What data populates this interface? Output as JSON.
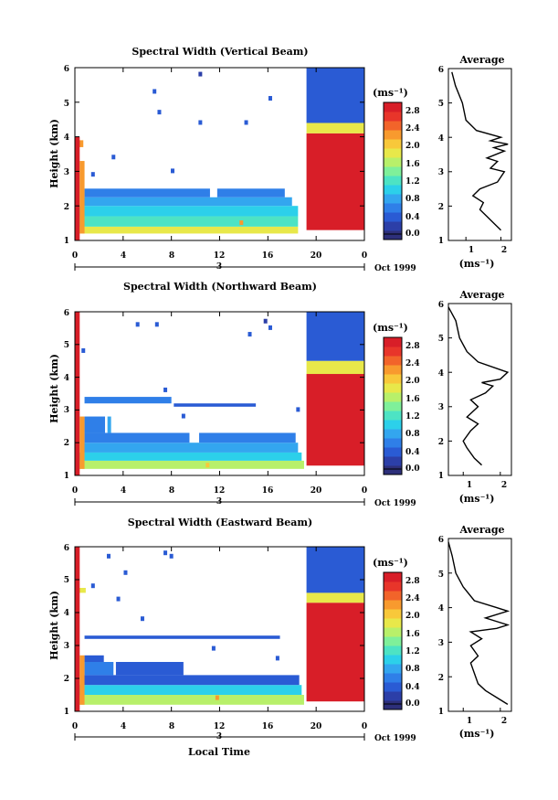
{
  "chart_data": [
    {
      "type": "heatmap",
      "title": "Spectral Width (Vertical Beam)",
      "ylabel": "Height (km)",
      "xlabel": "",
      "x_ticks": [
        "0",
        "4",
        "8",
        "12",
        "16",
        "20",
        "0"
      ],
      "y_ticks": [
        "1",
        "2",
        "3",
        "4",
        "5",
        "6"
      ],
      "xlim": [
        0,
        24
      ],
      "ylim": [
        1,
        6
      ],
      "day_label": "3",
      "date_label": "Oct 1999",
      "colorbar": {
        "unit_label": "(ms⁻¹)",
        "ticks": [
          "0.0",
          "0.4",
          "0.8",
          "1.2",
          "1.6",
          "2.0",
          "2.4",
          "2.8"
        ],
        "range": [
          0,
          3.0
        ]
      },
      "rows": [
        {
          "h0": 1.2,
          "h1": 1.4,
          "segments": [
            {
              "t0": 0.3,
              "t1": 18.5,
              "v": 1.9
            }
          ]
        },
        {
          "h0": 1.4,
          "h1": 1.7,
          "segments": [
            {
              "t0": 0.3,
              "t1": 18.5,
              "v": 1.3
            }
          ]
        },
        {
          "h0": 1.7,
          "h1": 2.0,
          "segments": [
            {
              "t0": 0.3,
              "t1": 18.5,
              "v": 1.0
            }
          ]
        },
        {
          "h0": 2.0,
          "h1": 2.25,
          "segments": [
            {
              "t0": 0.6,
              "t1": 18.0,
              "v": 0.8
            }
          ]
        },
        {
          "h0": 2.25,
          "h1": 2.5,
          "segments": [
            {
              "t0": 0.8,
              "t1": 11.2,
              "v": 0.7
            },
            {
              "t0": 11.8,
              "t1": 17.4,
              "v": 0.7
            }
          ]
        },
        {
          "h0": 3.7,
          "h1": 3.9,
          "segments": [
            {
              "t0": 0.2,
              "t1": 0.7,
              "v": 2.3
            }
          ]
        }
      ],
      "columns": [
        {
          "t0": 0.0,
          "t1": 0.4,
          "h0": 1.0,
          "h1": 4.0,
          "v": 2.9
        },
        {
          "t0": 0.4,
          "t1": 0.8,
          "h0": 1.2,
          "h1": 3.3,
          "v": 2.3
        },
        {
          "t0": 19.2,
          "t1": 24.0,
          "h0": 1.3,
          "h1": 4.1,
          "v": 2.9
        },
        {
          "t0": 19.2,
          "t1": 24.0,
          "h0": 4.1,
          "h1": 4.4,
          "v": 1.8
        },
        {
          "t0": 19.2,
          "t1": 24.0,
          "h0": 4.4,
          "h1": 6.0,
          "v": 0.6
        }
      ],
      "speckles": [
        {
          "t": 10.4,
          "h": 5.8,
          "v": 0.3
        },
        {
          "t": 6.6,
          "h": 5.3,
          "v": 0.6
        },
        {
          "t": 7.0,
          "h": 4.7,
          "v": 0.5
        },
        {
          "t": 10.4,
          "h": 4.4,
          "v": 0.5
        },
        {
          "t": 14.2,
          "h": 4.4,
          "v": 0.6
        },
        {
          "t": 16.2,
          "h": 5.1,
          "v": 0.4
        },
        {
          "t": 3.2,
          "h": 3.4,
          "v": 0.5
        },
        {
          "t": 8.1,
          "h": 3.0,
          "v": 0.6
        },
        {
          "t": 1.5,
          "h": 2.9,
          "v": 0.6
        },
        {
          "t": 13.8,
          "h": 1.5,
          "v": 2.3
        }
      ],
      "average_profile": {
        "title": "Average",
        "xlabel": "(ms⁻¹)",
        "x_ticks": [
          "1",
          "2"
        ],
        "xlim": [
          0.5,
          2.3
        ],
        "y_ticks": [
          "1",
          "2",
          "3",
          "4",
          "5",
          "6"
        ],
        "ylim": [
          1,
          6
        ],
        "points": [
          [
            2.0,
            1.3
          ],
          [
            1.8,
            1.5
          ],
          [
            1.6,
            1.7
          ],
          [
            1.4,
            1.9
          ],
          [
            1.5,
            2.1
          ],
          [
            1.2,
            2.3
          ],
          [
            1.4,
            2.5
          ],
          [
            1.9,
            2.7
          ],
          [
            2.1,
            3.0
          ],
          [
            1.7,
            3.1
          ],
          [
            1.9,
            3.3
          ],
          [
            1.6,
            3.4
          ],
          [
            2.1,
            3.6
          ],
          [
            1.8,
            3.7
          ],
          [
            2.2,
            3.8
          ],
          [
            1.7,
            3.9
          ],
          [
            2.0,
            4.0
          ],
          [
            1.3,
            4.2
          ],
          [
            1.0,
            4.5
          ],
          [
            0.9,
            5.0
          ],
          [
            0.7,
            5.5
          ],
          [
            0.6,
            5.9
          ]
        ]
      }
    },
    {
      "type": "heatmap",
      "title": "Spectral Width (Northward Beam)",
      "ylabel": "Height (km)",
      "xlabel": "",
      "x_ticks": [
        "0",
        "4",
        "8",
        "12",
        "16",
        "20",
        "0"
      ],
      "y_ticks": [
        "1",
        "2",
        "3",
        "4",
        "5",
        "6"
      ],
      "xlim": [
        0,
        24
      ],
      "ylim": [
        1,
        6
      ],
      "day_label": "3",
      "date_label": "Oct 1999",
      "colorbar": {
        "unit_label": "(ms⁻¹)",
        "ticks": [
          "0.0",
          "0.4",
          "0.8",
          "1.2",
          "1.6",
          "2.0",
          "2.4",
          "2.8"
        ],
        "range": [
          0,
          3.0
        ]
      },
      "rows": [
        {
          "h0": 1.2,
          "h1": 1.45,
          "segments": [
            {
              "t0": 0.3,
              "t1": 19.0,
              "v": 1.6
            }
          ]
        },
        {
          "h0": 1.45,
          "h1": 1.7,
          "segments": [
            {
              "t0": 0.3,
              "t1": 18.8,
              "v": 1.0
            }
          ]
        },
        {
          "h0": 1.7,
          "h1": 2.0,
          "segments": [
            {
              "t0": 0.5,
              "t1": 18.5,
              "v": 0.8
            }
          ]
        },
        {
          "h0": 2.0,
          "h1": 2.3,
          "segments": [
            {
              "t0": 0.8,
              "t1": 9.5,
              "v": 0.7
            },
            {
              "t0": 10.3,
              "t1": 18.3,
              "v": 0.7
            }
          ]
        },
        {
          "h0": 2.3,
          "h1": 2.8,
          "segments": [
            {
              "t0": 0.8,
              "t1": 2.5,
              "v": 0.7
            },
            {
              "t0": 2.7,
              "t1": 3.0,
              "v": 0.8
            }
          ]
        },
        {
          "h0": 3.2,
          "h1": 3.4,
          "segments": [
            {
              "t0": 0.8,
              "t1": 8.0,
              "v": 0.7
            }
          ]
        },
        {
          "h0": 3.1,
          "h1": 3.2,
          "segments": [
            {
              "t0": 8.2,
              "t1": 15.0,
              "v": 0.6
            }
          ]
        }
      ],
      "columns": [
        {
          "t0": 0.0,
          "t1": 0.4,
          "h0": 1.0,
          "h1": 6.0,
          "v": 2.9
        },
        {
          "t0": 0.4,
          "t1": 0.8,
          "h0": 1.2,
          "h1": 2.8,
          "v": 2.2
        },
        {
          "t0": 19.2,
          "t1": 24.0,
          "h0": 1.3,
          "h1": 4.1,
          "v": 2.9
        },
        {
          "t0": 19.2,
          "t1": 24.0,
          "h0": 4.1,
          "h1": 4.5,
          "v": 1.8
        },
        {
          "t0": 19.2,
          "t1": 24.0,
          "h0": 4.5,
          "h1": 6.0,
          "v": 0.6
        }
      ],
      "speckles": [
        {
          "t": 5.2,
          "h": 5.6,
          "v": 0.5
        },
        {
          "t": 6.8,
          "h": 5.6,
          "v": 0.5
        },
        {
          "t": 15.8,
          "h": 5.7,
          "v": 0.3
        },
        {
          "t": 16.2,
          "h": 5.5,
          "v": 0.4
        },
        {
          "t": 14.5,
          "h": 5.3,
          "v": 0.5
        },
        {
          "t": 0.7,
          "h": 4.8,
          "v": 0.5
        },
        {
          "t": 7.5,
          "h": 3.6,
          "v": 0.5
        },
        {
          "t": 18.5,
          "h": 3.0,
          "v": 0.6
        },
        {
          "t": 9.0,
          "h": 2.8,
          "v": 0.6
        },
        {
          "t": 11.0,
          "h": 1.3,
          "v": 2.1
        }
      ],
      "average_profile": {
        "title": "Average",
        "xlabel": "(ms⁻¹)",
        "x_ticks": [
          "1",
          "2"
        ],
        "xlim": [
          0.6,
          2.3
        ],
        "y_ticks": [
          "1",
          "2",
          "3",
          "4",
          "5",
          "6"
        ],
        "ylim": [
          1,
          6
        ],
        "points": [
          [
            1.5,
            1.3
          ],
          [
            1.3,
            1.5
          ],
          [
            1.1,
            1.8
          ],
          [
            1.0,
            2.0
          ],
          [
            1.2,
            2.3
          ],
          [
            1.4,
            2.5
          ],
          [
            1.1,
            2.7
          ],
          [
            1.4,
            3.0
          ],
          [
            1.2,
            3.2
          ],
          [
            1.6,
            3.4
          ],
          [
            1.8,
            3.6
          ],
          [
            1.5,
            3.7
          ],
          [
            2.0,
            3.8
          ],
          [
            2.2,
            4.0
          ],
          [
            1.4,
            4.3
          ],
          [
            1.1,
            4.6
          ],
          [
            0.9,
            5.0
          ],
          [
            0.8,
            5.5
          ],
          [
            0.6,
            5.9
          ]
        ]
      }
    },
    {
      "type": "heatmap",
      "title": "Spectral Width (Eastward Beam)",
      "ylabel": "Height (km)",
      "xlabel": "Local Time",
      "x_ticks": [
        "0",
        "4",
        "8",
        "12",
        "16",
        "20",
        "0"
      ],
      "y_ticks": [
        "1",
        "2",
        "3",
        "4",
        "5",
        "6"
      ],
      "xlim": [
        0,
        24
      ],
      "ylim": [
        1,
        6
      ],
      "day_label": "3",
      "date_label": "Oct 1999",
      "colorbar": {
        "unit_label": "(ms⁻¹)",
        "ticks": [
          "0.0",
          "0.4",
          "0.8",
          "1.2",
          "1.6",
          "2.0",
          "2.4",
          "2.8"
        ],
        "range": [
          0,
          3.0
        ]
      },
      "rows": [
        {
          "h0": 1.2,
          "h1": 1.5,
          "segments": [
            {
              "t0": 0.3,
              "t1": 19.0,
              "v": 1.7
            }
          ]
        },
        {
          "h0": 1.5,
          "h1": 1.8,
          "segments": [
            {
              "t0": 0.3,
              "t1": 18.8,
              "v": 1.0
            }
          ]
        },
        {
          "h0": 1.8,
          "h1": 2.1,
          "segments": [
            {
              "t0": 0.5,
              "t1": 18.6,
              "v": 0.6
            }
          ]
        },
        {
          "h0": 2.1,
          "h1": 2.5,
          "segments": [
            {
              "t0": 0.8,
              "t1": 3.2,
              "v": 0.7
            },
            {
              "t0": 3.4,
              "t1": 9.0,
              "v": 0.6
            }
          ]
        },
        {
          "h0": 2.5,
          "h1": 2.7,
          "segments": [
            {
              "t0": 0.8,
              "t1": 2.4,
              "v": 0.6
            }
          ]
        },
        {
          "h0": 3.2,
          "h1": 3.3,
          "segments": [
            {
              "t0": 0.8,
              "t1": 17.0,
              "v": 0.6
            }
          ]
        },
        {
          "h0": 4.6,
          "h1": 4.75,
          "segments": [
            {
              "t0": 0.3,
              "t1": 0.9,
              "v": 1.8
            }
          ]
        }
      ],
      "columns": [
        {
          "t0": 0.0,
          "t1": 0.4,
          "h0": 1.0,
          "h1": 6.0,
          "v": 2.9
        },
        {
          "t0": 0.4,
          "t1": 0.8,
          "h0": 1.2,
          "h1": 2.7,
          "v": 2.2
        },
        {
          "t0": 19.2,
          "t1": 24.0,
          "h0": 1.3,
          "h1": 4.3,
          "v": 2.9
        },
        {
          "t0": 19.2,
          "t1": 24.0,
          "h0": 4.3,
          "h1": 4.6,
          "v": 1.8
        },
        {
          "t0": 19.2,
          "t1": 24.0,
          "h0": 4.6,
          "h1": 6.0,
          "v": 0.6
        }
      ],
      "speckles": [
        {
          "t": 7.5,
          "h": 5.8,
          "v": 0.5
        },
        {
          "t": 8.0,
          "h": 5.7,
          "v": 0.5
        },
        {
          "t": 2.8,
          "h": 5.7,
          "v": 0.4
        },
        {
          "t": 4.2,
          "h": 5.2,
          "v": 0.5
        },
        {
          "t": 1.5,
          "h": 4.8,
          "v": 0.6
        },
        {
          "t": 3.6,
          "h": 4.4,
          "v": 0.6
        },
        {
          "t": 11.5,
          "h": 2.9,
          "v": 0.5
        },
        {
          "t": 16.8,
          "h": 2.6,
          "v": 0.6
        },
        {
          "t": 5.6,
          "h": 3.8,
          "v": 0.5
        },
        {
          "t": 11.8,
          "h": 1.4,
          "v": 2.2
        }
      ],
      "average_profile": {
        "title": "Average",
        "xlabel": "(ms⁻¹)",
        "x_ticks": [
          "1",
          "2"
        ],
        "xlim": [
          0.6,
          2.3
        ],
        "y_ticks": [
          "1",
          "2",
          "3",
          "4",
          "5",
          "6"
        ],
        "ylim": [
          1,
          6
        ],
        "points": [
          [
            2.2,
            1.2
          ],
          [
            1.9,
            1.4
          ],
          [
            1.6,
            1.6
          ],
          [
            1.4,
            1.8
          ],
          [
            1.3,
            2.1
          ],
          [
            1.2,
            2.4
          ],
          [
            1.4,
            2.6
          ],
          [
            1.2,
            2.9
          ],
          [
            1.5,
            3.1
          ],
          [
            1.2,
            3.3
          ],
          [
            1.9,
            3.4
          ],
          [
            2.2,
            3.5
          ],
          [
            1.6,
            3.7
          ],
          [
            2.2,
            3.9
          ],
          [
            1.9,
            4.0
          ],
          [
            1.3,
            4.2
          ],
          [
            1.0,
            4.6
          ],
          [
            0.8,
            5.0
          ],
          [
            0.7,
            5.5
          ],
          [
            0.6,
            5.9
          ]
        ]
      }
    }
  ]
}
